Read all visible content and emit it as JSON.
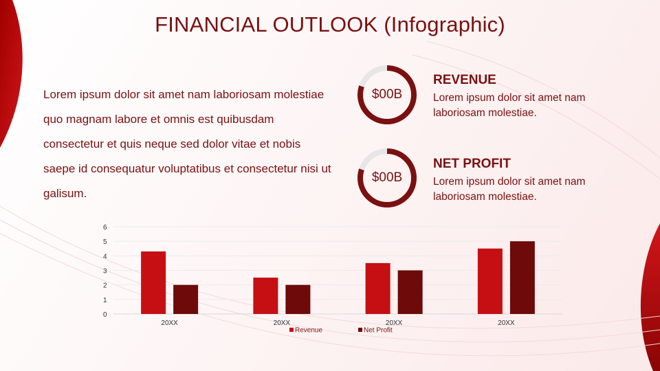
{
  "title": "FINANCIAL OUTLOOK (Infographic)",
  "body_text": "Lorem ipsum dolor sit amet nam laboriosam molestiae quo magnam labore et omnis est quibusdam consectetur et quis neque sed dolor vitae et nobis saepe id consequatur voluptatibus et consectetur nisi ut galisum.",
  "kpis": [
    {
      "heading": "REVENUE",
      "value": "$00B",
      "text": "Lorem ipsum dolor sit amet nam laboriosam molestiae.",
      "fill_fraction": 0.8
    },
    {
      "heading": "NET PROFIT",
      "value": "$00B",
      "text": "Lorem ipsum dolor sit amet nam laboriosam molestiae.",
      "fill_fraction": 0.8
    }
  ],
  "colors": {
    "accent_dark": "#7a1010",
    "revenue": "#c60f13",
    "net_profit": "#6e0a0a",
    "donut_track": "#e6e6e6"
  },
  "chart_data": {
    "type": "bar",
    "categories": [
      "20XX",
      "20XX",
      "20XX",
      "20XX"
    ],
    "series": [
      {
        "name": "Revenue",
        "values": [
          4.3,
          2.5,
          3.5,
          4.5
        ]
      },
      {
        "name": "Net Profit",
        "values": [
          2.0,
          2.0,
          3.0,
          5.0
        ]
      }
    ],
    "yticks": [
      "0",
      "1",
      "2",
      "3",
      "4",
      "5",
      "6"
    ],
    "ylim": [
      0,
      6
    ],
    "grid": true,
    "legend": "bottom",
    "xlabel": "",
    "ylabel": ""
  }
}
